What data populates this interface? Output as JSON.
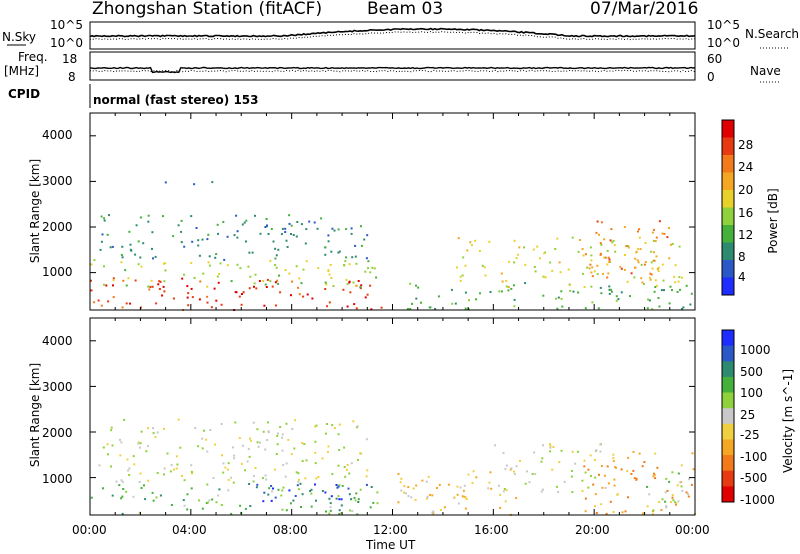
{
  "header": {
    "station": "Zhongshan Station (fitACF)",
    "beam": "Beam 03",
    "date": "07/Mar/2016"
  },
  "noise_panel": {
    "left_label": "N.Sky",
    "left_ticks": [
      "10^5",
      "10^0"
    ],
    "right_ticks": [
      "10^5",
      "10^0"
    ],
    "right_label": "N.Search"
  },
  "freq_panel": {
    "left_label_1": "Freq.",
    "left_label_2": "[MHz]",
    "left_ticks": [
      "18",
      "8"
    ],
    "right_ticks": [
      "60",
      "0"
    ],
    "right_label": "Nave"
  },
  "cpid": {
    "label": "CPID",
    "value": "normal (fast stereo) 153"
  },
  "x_axis": {
    "ticks": [
      "00:00",
      "04:00",
      "08:00",
      "12:00",
      "16:00",
      "20:00",
      "00:00"
    ],
    "label": "Time UT"
  },
  "colors": {
    "power_scale": [
      "#1f2cff",
      "#2a58c8",
      "#2e8a6e",
      "#45b03a",
      "#8fd13a",
      "#e8d22a",
      "#f5a623",
      "#f27a1a",
      "#e83a12",
      "#e00000"
    ],
    "velocity_scale": [
      "#1f2cff",
      "#2a58c8",
      "#2e8a6e",
      "#45b03a",
      "#8fd13a",
      "#c8c8c8",
      "#f0d040",
      "#f5a623",
      "#f27a1a",
      "#e83a12",
      "#e00000"
    ]
  },
  "chart_data": [
    {
      "type": "heatmap",
      "title": "",
      "xlabel": "Time UT",
      "ylabel": "Slant Range [km]",
      "xlim": [
        "00:00",
        "24:00"
      ],
      "ylim": [
        180,
        4500
      ],
      "yticks": [
        "1000",
        "2000",
        "3000",
        "4000"
      ],
      "colorbar": {
        "label": "Power [dB]",
        "ticks": [
          "4",
          "8",
          "12",
          "16",
          "20",
          "24",
          "28"
        ],
        "range": [
          0,
          30
        ]
      },
      "scatter_regions": [
        {
          "t_start": 0.0,
          "t_end": 11.6,
          "r_min": 200,
          "r_max": 900,
          "value": 26
        },
        {
          "t_start": 0.0,
          "t_end": 11.6,
          "r_min": 700,
          "r_max": 1300,
          "value": 14
        },
        {
          "t_start": 0.3,
          "t_end": 11.0,
          "r_min": 1300,
          "r_max": 2300,
          "value": 8
        },
        {
          "t_start": 2.5,
          "t_end": 5.5,
          "r_min": 2950,
          "r_max": 3050,
          "value": 6
        },
        {
          "t_start": 12.5,
          "t_end": 24.0,
          "r_min": 200,
          "r_max": 800,
          "value": 10
        },
        {
          "t_start": 14.5,
          "t_end": 23.5,
          "r_min": 700,
          "r_max": 1800,
          "value": 16
        },
        {
          "t_start": 19.5,
          "t_end": 23.0,
          "r_min": 900,
          "r_max": 2200,
          "value": 22
        }
      ]
    },
    {
      "type": "heatmap",
      "title": "",
      "xlabel": "Time UT",
      "ylabel": "Slant Range [km]",
      "xlim": [
        "00:00",
        "24:00"
      ],
      "ylim": [
        180,
        4500
      ],
      "yticks": [
        "1000",
        "2000",
        "3000",
        "4000"
      ],
      "colorbar": {
        "label": "Velocity [m s^-1]",
        "ticks": [
          "1000",
          "500",
          "100",
          "25",
          "-25",
          "-100",
          "-500",
          "-1000"
        ],
        "range": [
          -1000,
          1000
        ]
      },
      "scatter_regions": [
        {
          "t_start": 0.0,
          "t_end": 11.6,
          "r_min": 200,
          "r_max": 900,
          "value": 300
        },
        {
          "t_start": 6.5,
          "t_end": 11.0,
          "r_min": 400,
          "r_max": 900,
          "value": 800
        },
        {
          "t_start": 0.3,
          "t_end": 11.0,
          "r_min": 900,
          "r_max": 2300,
          "value": 0
        },
        {
          "t_start": 12.0,
          "t_end": 17.0,
          "r_min": 200,
          "r_max": 1200,
          "value": -200
        },
        {
          "t_start": 16.0,
          "t_end": 20.5,
          "r_min": 700,
          "r_max": 1800,
          "value": 0
        },
        {
          "t_start": 19.5,
          "t_end": 24.0,
          "r_min": 200,
          "r_max": 1600,
          "value": -400
        },
        {
          "t_start": 22.0,
          "t_end": 24.0,
          "r_min": 300,
          "r_max": 1200,
          "value": 100
        }
      ]
    }
  ]
}
